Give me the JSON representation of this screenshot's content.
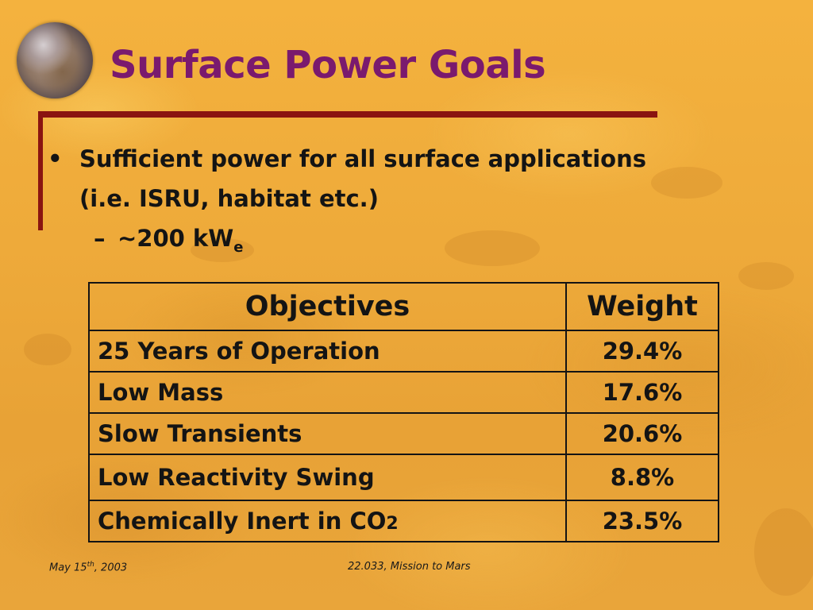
{
  "slide": {
    "title": "Surface Power Goals",
    "bullet": {
      "line1": "Sufficient power for all surface applications",
      "line2": "(i.e. ISRU, habitat etc.)",
      "sub_value": "~200 kW",
      "sub_subscript": "e"
    },
    "table": {
      "headers": [
        "Objectives",
        "Weight"
      ],
      "rows": [
        {
          "objective": "25 Years of Operation",
          "weight": "29.4%"
        },
        {
          "objective": "Low Mass",
          "weight": "17.6%"
        },
        {
          "objective": "Slow Transients",
          "weight": "20.6%"
        },
        {
          "objective": "Low Reactivity Swing",
          "weight": "8.8%"
        },
        {
          "objective_main": "Chemically Inert in CO",
          "objective_sub": "2",
          "weight": "23.5%"
        }
      ]
    },
    "footer": {
      "date_prefix": "May 15",
      "date_sup": "th",
      "date_suffix": ", 2003",
      "course": "22.033, Mission to Mars"
    }
  }
}
